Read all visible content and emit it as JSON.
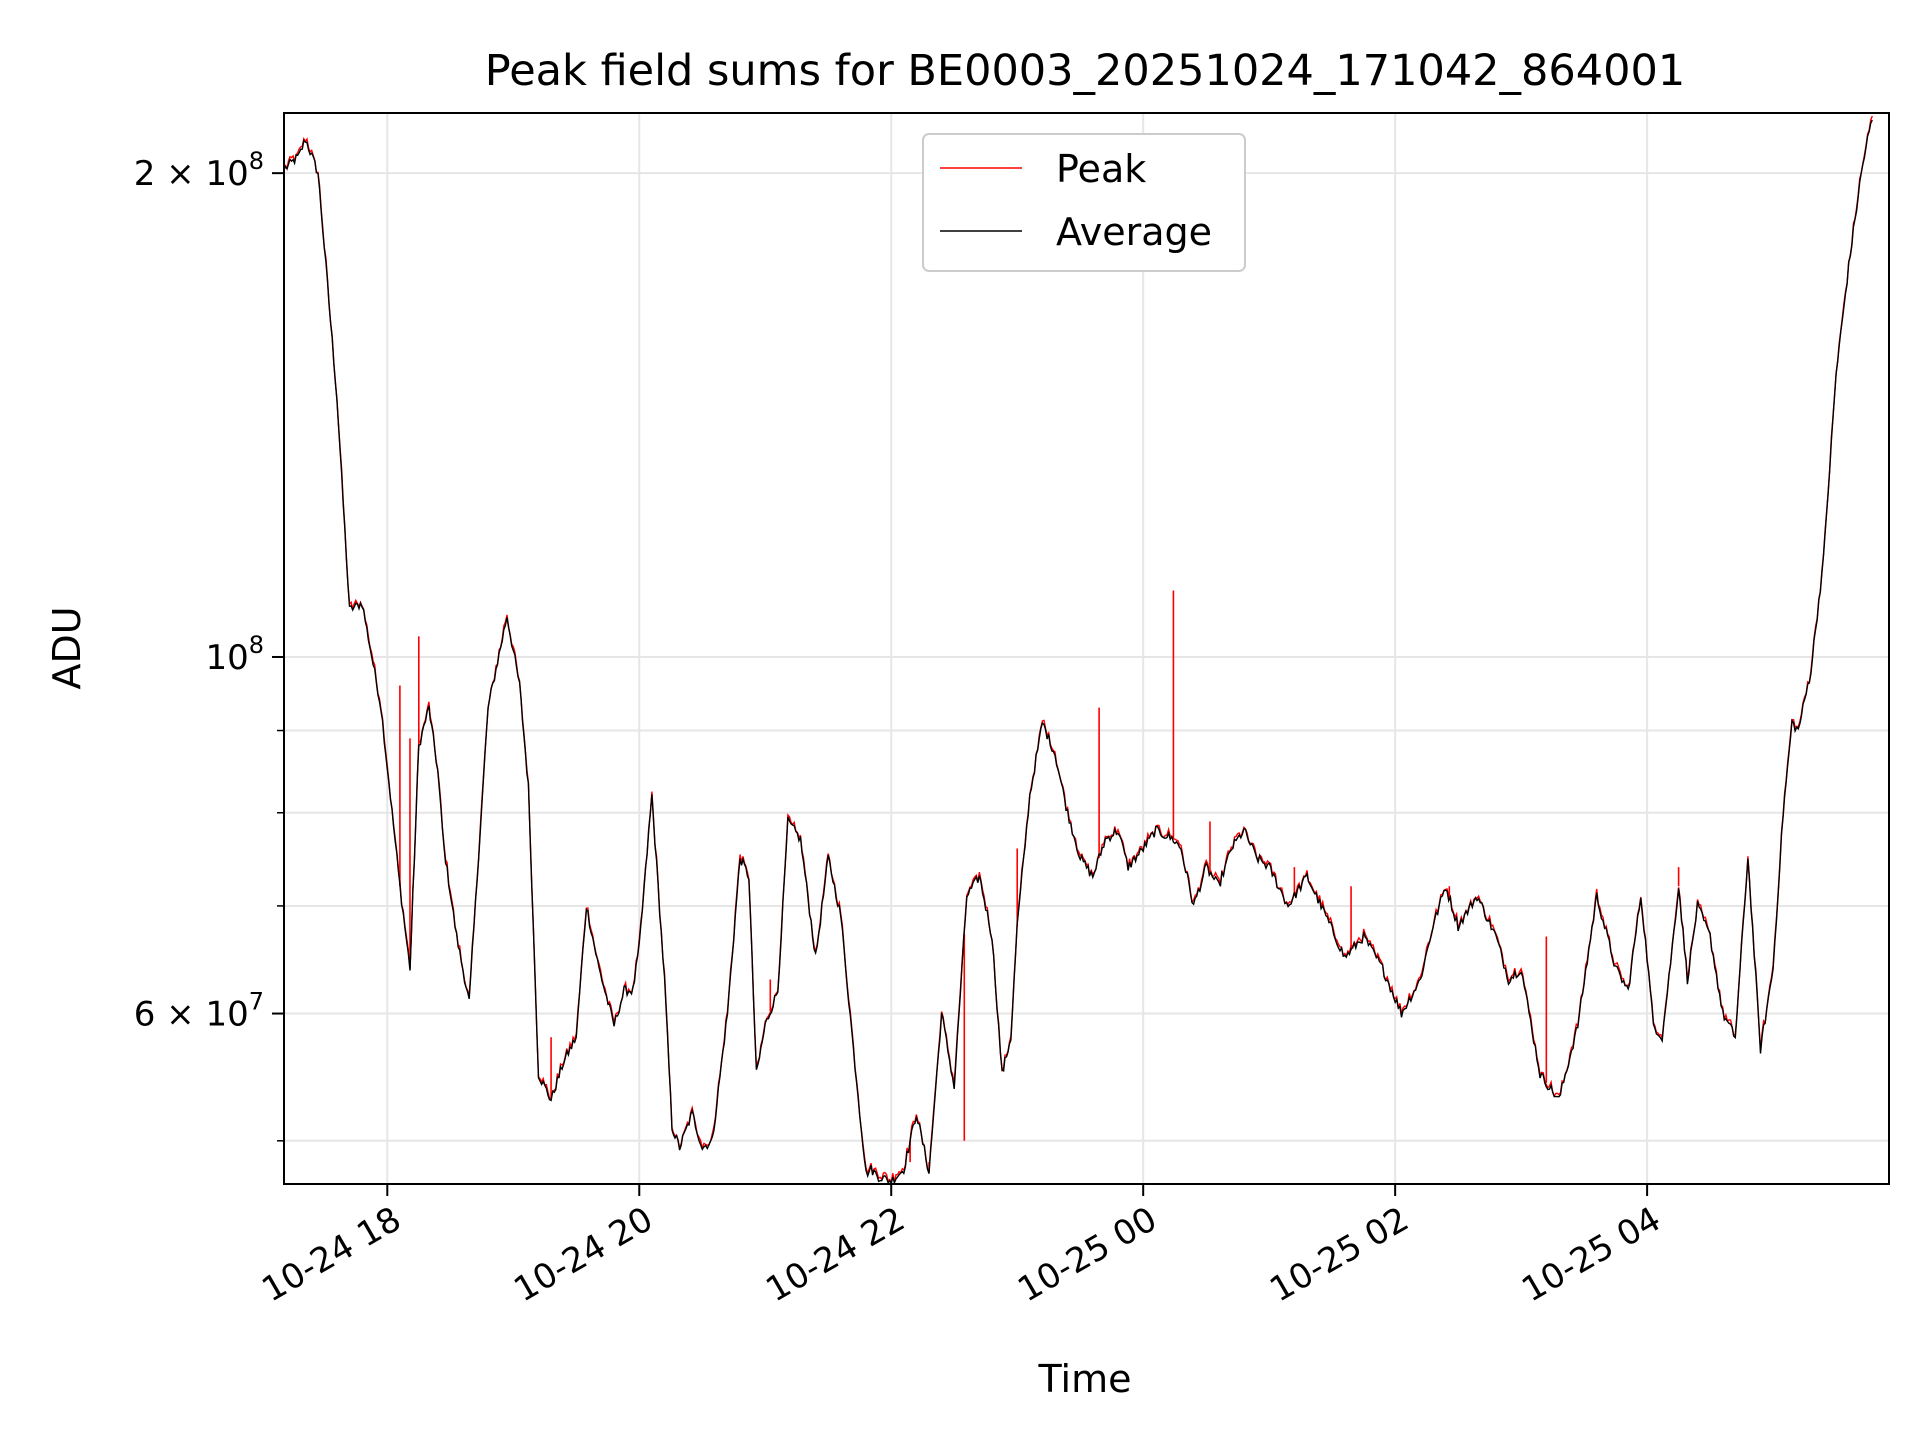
{
  "chart_data": {
    "type": "line",
    "title": "Peak field sums for BE0003_20251024_171042_864001",
    "xlabel": "Time",
    "ylabel": "ADU",
    "yscale": "log",
    "xlim_hours": [
      17.18,
      29.92
    ],
    "ylim": [
      47000000,
      218000000
    ],
    "grid": true,
    "legend_position": "upper-center",
    "x_ticks": [
      {
        "hour": 18,
        "label": "10-24 18"
      },
      {
        "hour": 20,
        "label": "10-24 20"
      },
      {
        "hour": 22,
        "label": "10-24 22"
      },
      {
        "hour": 24,
        "label": "10-25 00"
      },
      {
        "hour": 26,
        "label": "10-25 02"
      },
      {
        "hour": 28,
        "label": "10-25 04"
      }
    ],
    "y_major_ticks": [
      {
        "value": 60000000,
        "mantissa": "6",
        "base": "10",
        "exp": "7"
      },
      {
        "value": 100000000,
        "mantissa": "",
        "base": "10",
        "exp": "8"
      },
      {
        "value": 200000000,
        "mantissa": "2",
        "base": "10",
        "exp": "8"
      }
    ],
    "y_minor_values": [
      50000000,
      70000000,
      80000000,
      90000000
    ],
    "series": [
      {
        "name": "Peak",
        "color": "#ff0000"
      },
      {
        "name": "Average",
        "color": "#000000"
      }
    ],
    "average_hours": [
      17.18,
      17.3,
      17.35,
      17.4,
      17.45,
      17.5,
      17.6,
      17.7,
      17.8,
      17.95,
      18.1,
      18.18,
      18.25,
      18.33,
      18.4,
      18.45,
      18.55,
      18.65,
      18.8,
      18.95,
      19.05,
      19.12,
      19.2,
      19.3,
      19.4,
      19.5,
      19.58,
      19.68,
      19.8,
      19.88,
      19.95,
      20.0,
      20.1,
      20.2,
      20.26,
      20.32,
      20.42,
      20.5,
      20.58,
      20.7,
      20.8,
      20.87,
      20.93,
      21.0,
      21.1,
      21.18,
      21.28,
      21.4,
      21.5,
      21.6,
      21.7,
      21.8,
      21.84,
      21.9,
      22.0,
      22.1,
      22.2,
      22.3,
      22.4,
      22.5,
      22.55,
      22.6,
      22.7,
      22.8,
      22.88,
      22.95,
      23.0,
      23.1,
      23.2,
      23.3,
      23.4,
      23.5,
      23.6,
      23.7,
      23.8,
      23.88,
      24.0,
      24.1,
      24.24,
      24.3,
      24.4,
      24.5,
      24.6,
      24.7,
      24.8,
      24.9,
      25.0,
      25.15,
      25.3,
      25.45,
      25.6,
      25.75,
      25.9,
      26.05,
      26.2,
      26.3,
      26.4,
      26.5,
      26.65,
      26.8,
      26.9,
      27.0,
      27.15,
      27.3,
      27.45,
      27.6,
      27.75,
      27.85,
      27.95,
      28.0,
      28.05,
      28.12,
      28.2,
      28.25,
      28.32,
      28.4,
      28.5,
      28.6,
      28.7,
      28.8,
      28.9,
      29.0,
      29.08,
      29.15,
      29.2,
      29.3,
      29.4,
      29.5,
      29.6,
      29.7,
      29.75,
      29.8,
      29.85,
      29.92
    ],
    "average_values": [
      201000000,
      205000000,
      210000000,
      205000000,
      200000000,
      180000000,
      145000000,
      107000000,
      108000000,
      93000000,
      72000000,
      64000000,
      88000000,
      93000000,
      85000000,
      76000000,
      67000000,
      61000000,
      93000000,
      106000000,
      96000000,
      83000000,
      55000000,
      53000000,
      56000000,
      58000000,
      70000000,
      64000000,
      59000000,
      62000000,
      62000000,
      66000000,
      82000000,
      63000000,
      51000000,
      49500000,
      52000000,
      49500000,
      50000000,
      60000000,
      75000000,
      73000000,
      55000000,
      59000000,
      62000000,
      79000000,
      77000000,
      65000000,
      75000000,
      69000000,
      57000000,
      47700000,
      48000000,
      47500000,
      47200000,
      48000000,
      52000000,
      47800000,
      60000000,
      54000000,
      62000000,
      71000000,
      73000000,
      67000000,
      55000000,
      58000000,
      68000000,
      82000000,
      91000000,
      87000000,
      80000000,
      75000000,
      73000000,
      77000000,
      78000000,
      74000000,
      76000000,
      78000000,
      77000000,
      76000000,
      70000000,
      74000000,
      72000000,
      76000000,
      78000000,
      75000000,
      74000000,
      70000000,
      73000000,
      69000000,
      65000000,
      67000000,
      64000000,
      60000000,
      63000000,
      68000000,
      72000000,
      68000000,
      71000000,
      67000000,
      63000000,
      64000000,
      55000000,
      53000000,
      59000000,
      71000000,
      64000000,
      62000000,
      71000000,
      65000000,
      59000000,
      58000000,
      66000000,
      72000000,
      63000000,
      70000000,
      67000000,
      60000000,
      58000000,
      75000000,
      57000000,
      64000000,
      80000000,
      91000000,
      90000000,
      98000000,
      115000000,
      150000000,
      175000000,
      200000000,
      210000000,
      218000000
    ],
    "peak_spikes": [
      {
        "hour": 18.1,
        "value": 96000000
      },
      {
        "hour": 18.18,
        "value": 89000000
      },
      {
        "hour": 18.25,
        "value": 103000000
      },
      {
        "hour": 19.3,
        "value": 58000000
      },
      {
        "hour": 20.42,
        "value": 52000000
      },
      {
        "hour": 21.04,
        "value": 63000000
      },
      {
        "hour": 22.15,
        "value": 48500000
      },
      {
        "hour": 22.3,
        "value": 48500000
      },
      {
        "hour": 22.58,
        "value": 50000000
      },
      {
        "hour": 23.0,
        "value": 76000000
      },
      {
        "hour": 23.08,
        "value": 79000000
      },
      {
        "hour": 23.65,
        "value": 93000000
      },
      {
        "hour": 24.24,
        "value": 110000000
      },
      {
        "hour": 24.53,
        "value": 79000000
      },
      {
        "hour": 25.2,
        "value": 74000000
      },
      {
        "hour": 25.65,
        "value": 72000000
      },
      {
        "hour": 26.43,
        "value": 72000000
      },
      {
        "hour": 27.2,
        "value": 67000000
      },
      {
        "hour": 28.25,
        "value": 74000000
      }
    ]
  }
}
